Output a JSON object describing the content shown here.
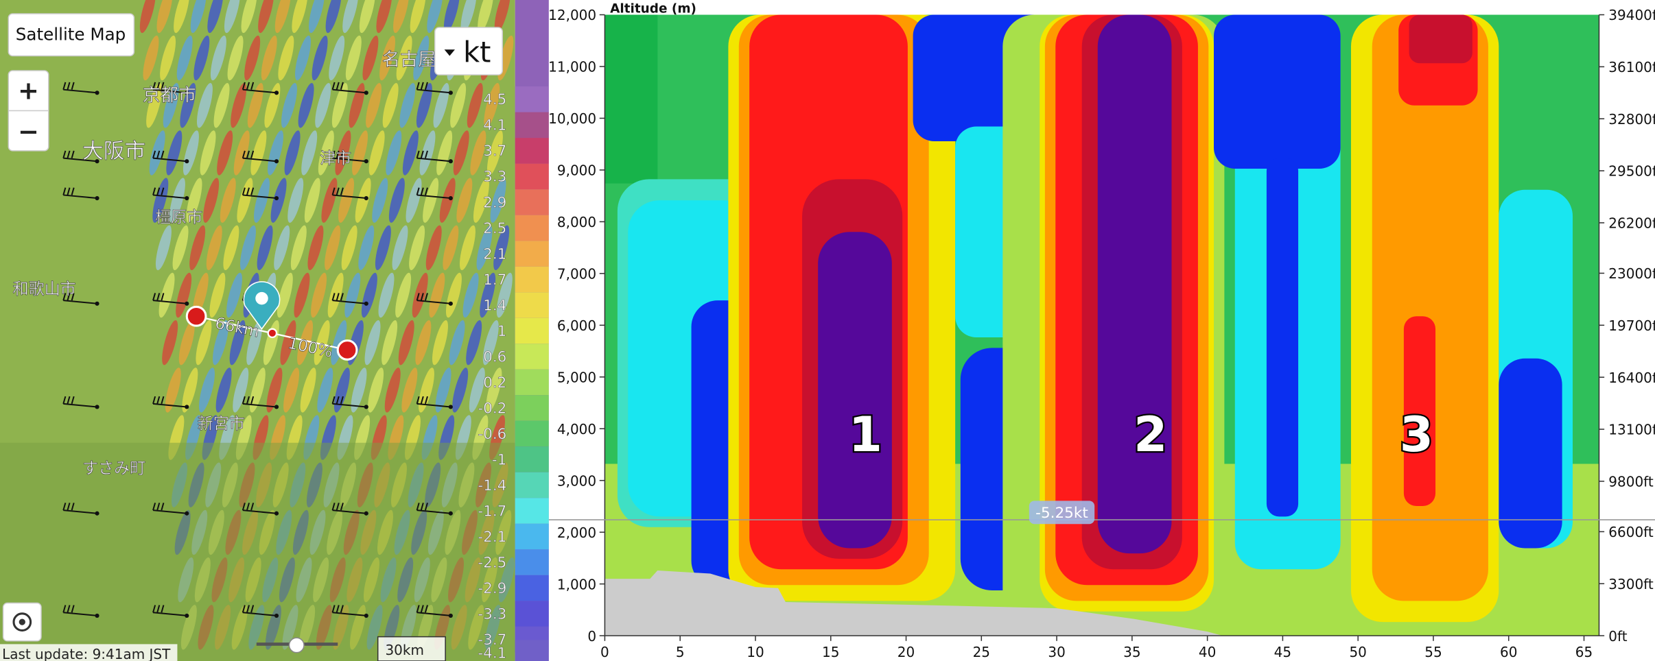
{
  "map": {
    "button": "Satellite Map",
    "unit": "kt",
    "zoom_in": "+",
    "zoom_out": "−",
    "cities": [
      "名古屋",
      "京都市",
      "大阪市",
      "津市",
      "橿原市",
      "和歌山市",
      "新宮市",
      "すさみ町"
    ],
    "distance_label": "66km",
    "percent_label": "100%",
    "last_update": "Last update: 9:41am JST",
    "scale_bar": "30km"
  },
  "legend": {
    "labels": [
      "4.5",
      "4.1",
      "3.7",
      "3.3",
      "2.9",
      "2.5",
      "2.1",
      "1.7",
      "1.4",
      "1",
      "0.6",
      "0.2",
      "-0.2",
      "-0.6",
      "-1",
      "-1.4",
      "-1.7",
      "-2.1",
      "-2.5",
      "-2.9",
      "-3.3",
      "-3.7",
      "-4.1"
    ]
  },
  "chart_data": {
    "type": "contour",
    "y_label": "Altitude (m)",
    "xlim": [
      0,
      66
    ],
    "xticks": [
      0,
      5,
      10,
      15,
      20,
      25,
      30,
      35,
      40,
      45,
      50,
      55,
      60,
      65
    ],
    "ylim": [
      0,
      12000
    ],
    "yticks": [
      0,
      {
        "value": 1000,
        "label": "1,000"
      },
      {
        "value": 2000,
        "label": "2,000"
      },
      {
        "value": 3000,
        "label": "3,000"
      },
      {
        "value": 4000,
        "label": "4,000"
      },
      {
        "value": 5000,
        "label": "5,000"
      },
      {
        "value": 6000,
        "label": "6,000"
      },
      {
        "value": 7000,
        "label": "7,000"
      },
      {
        "value": 8000,
        "label": "8,000"
      },
      {
        "value": 9000,
        "label": "9,000"
      },
      {
        "value": 10000,
        "label": "10,000"
      },
      {
        "value": 11000,
        "label": "11,000"
      },
      {
        "value": 12000,
        "label": "12,000"
      }
    ],
    "y2lim": [
      0,
      39400
    ],
    "y2ticks": [
      {
        "value": 0,
        "label": "0ft"
      },
      {
        "value": 3300,
        "label": "3300ft"
      },
      {
        "value": 6600,
        "label": "6600ft"
      },
      {
        "value": 9800,
        "label": "9800ft"
      },
      {
        "value": 13100,
        "label": "13100ft"
      },
      {
        "value": 16400,
        "label": "16400ft"
      },
      {
        "value": 19700,
        "label": "19700ft"
      },
      {
        "value": 23000,
        "label": "23000ft"
      },
      {
        "value": 26200,
        "label": "26200ft"
      },
      {
        "value": 29500,
        "label": "29500ft"
      },
      {
        "value": 32800,
        "label": "32800ft"
      },
      {
        "value": 36100,
        "label": "36100ft"
      },
      {
        "value": 39400,
        "label": "39400ft"
      }
    ],
    "annotations": [
      "1",
      "2",
      "3"
    ],
    "cursor": {
      "value": 2240,
      "label": "-5.25kt"
    },
    "terrain": {
      "color": "#cccccc",
      "x": [
        0,
        3,
        3.5,
        7,
        10,
        11.5,
        12,
        20,
        30,
        32,
        35,
        40,
        41,
        66
      ],
      "values": [
        1100,
        1100,
        1260,
        1200,
        940,
        920,
        650,
        600,
        530,
        450,
        330,
        80,
        0,
        0
      ]
    }
  }
}
